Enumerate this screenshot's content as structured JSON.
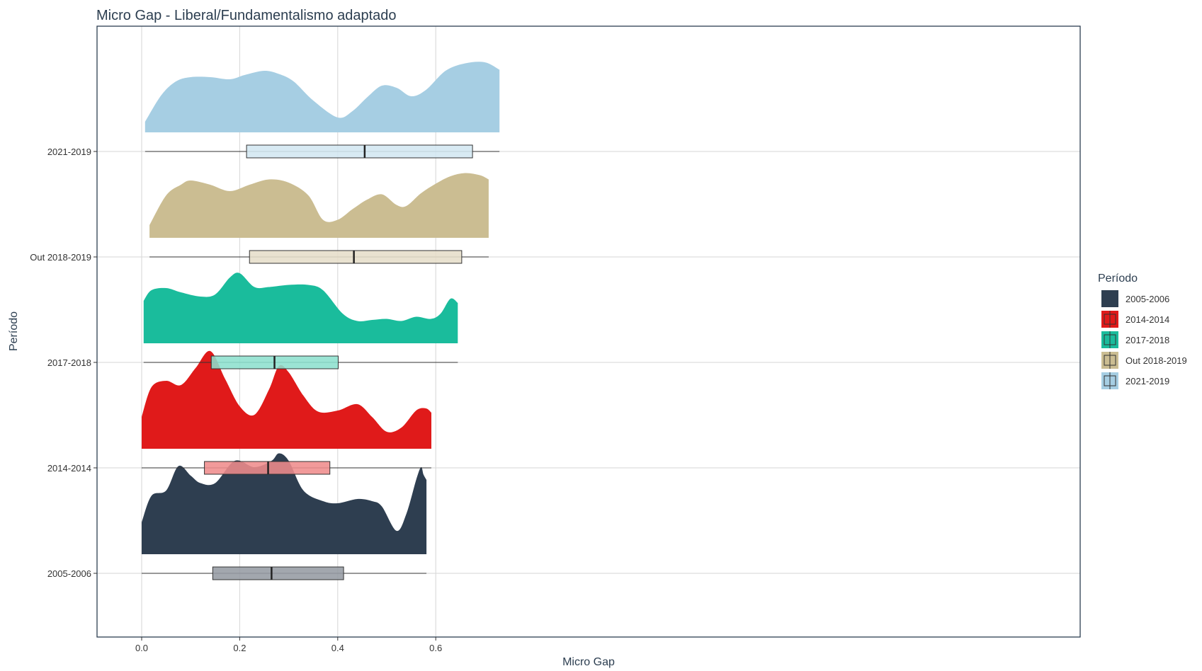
{
  "chart_data": {
    "type": "raincloud",
    "title": "Micro Gap - Liberal/Fundamentalismo adaptado",
    "xlabel": "Micro Gap",
    "ylabel": "Período",
    "xlim": [
      -0.09,
      1.91
    ],
    "x_ticks": [
      0.0,
      0.2,
      0.4,
      0.6
    ],
    "x_tick_labels": [
      "0.0",
      "0.2",
      "0.4",
      "0.6"
    ],
    "grid": true,
    "legend": {
      "title": "Período",
      "position": "right"
    },
    "series": [
      {
        "name": "2005-2006",
        "color": "#2e3e50",
        "box_fill": "#959ba3",
        "density_max": 1.0,
        "box": {
          "min": 0.0,
          "q1": 0.145,
          "median": 0.265,
          "q3": 0.412,
          "max": 0.581
        },
        "density": [
          [
            0.0,
            0.3
          ],
          [
            0.02,
            0.55
          ],
          [
            0.05,
            0.6
          ],
          [
            0.075,
            0.83
          ],
          [
            0.1,
            0.74
          ],
          [
            0.12,
            0.67
          ],
          [
            0.15,
            0.67
          ],
          [
            0.19,
            0.88
          ],
          [
            0.23,
            0.82
          ],
          [
            0.265,
            0.88
          ],
          [
            0.28,
            0.95
          ],
          [
            0.3,
            0.88
          ],
          [
            0.33,
            0.6
          ],
          [
            0.37,
            0.5
          ],
          [
            0.4,
            0.48
          ],
          [
            0.44,
            0.52
          ],
          [
            0.47,
            0.5
          ],
          [
            0.49,
            0.45
          ],
          [
            0.52,
            0.22
          ],
          [
            0.54,
            0.38
          ],
          [
            0.56,
            0.7
          ],
          [
            0.57,
            0.82
          ],
          [
            0.575,
            0.75
          ],
          [
            0.581,
            0.7
          ]
        ]
      },
      {
        "name": "2014-2014",
        "color": "#e01a1a",
        "box_fill": "#ef8c8c",
        "density_max": 1.0,
        "box": {
          "min": 0.0,
          "q1": 0.128,
          "median": 0.258,
          "q3": 0.384,
          "max": 0.591
        },
        "density": [
          [
            0.0,
            0.3
          ],
          [
            0.02,
            0.58
          ],
          [
            0.05,
            0.64
          ],
          [
            0.08,
            0.6
          ],
          [
            0.11,
            0.76
          ],
          [
            0.14,
            0.92
          ],
          [
            0.17,
            0.66
          ],
          [
            0.2,
            0.4
          ],
          [
            0.23,
            0.32
          ],
          [
            0.26,
            0.56
          ],
          [
            0.28,
            0.78
          ],
          [
            0.3,
            0.72
          ],
          [
            0.33,
            0.5
          ],
          [
            0.36,
            0.35
          ],
          [
            0.4,
            0.36
          ],
          [
            0.44,
            0.42
          ],
          [
            0.47,
            0.3
          ],
          [
            0.5,
            0.16
          ],
          [
            0.53,
            0.2
          ],
          [
            0.56,
            0.36
          ],
          [
            0.58,
            0.38
          ],
          [
            0.591,
            0.34
          ]
        ]
      },
      {
        "name": "2017-2018",
        "color": "#1abc9c",
        "box_fill": "#8de0ce",
        "density_max": 0.8,
        "box": {
          "min": 0.004,
          "q1": 0.142,
          "median": 0.271,
          "q3": 0.401,
          "max": 0.645
        },
        "density": [
          [
            0.004,
            0.4
          ],
          [
            0.02,
            0.5
          ],
          [
            0.05,
            0.52
          ],
          [
            0.08,
            0.48
          ],
          [
            0.12,
            0.44
          ],
          [
            0.15,
            0.46
          ],
          [
            0.18,
            0.62
          ],
          [
            0.2,
            0.66
          ],
          [
            0.23,
            0.53
          ],
          [
            0.26,
            0.53
          ],
          [
            0.3,
            0.55
          ],
          [
            0.34,
            0.55
          ],
          [
            0.37,
            0.5
          ],
          [
            0.41,
            0.28
          ],
          [
            0.44,
            0.21
          ],
          [
            0.47,
            0.22
          ],
          [
            0.5,
            0.23
          ],
          [
            0.53,
            0.21
          ],
          [
            0.56,
            0.25
          ],
          [
            0.59,
            0.23
          ],
          [
            0.61,
            0.28
          ],
          [
            0.63,
            0.42
          ],
          [
            0.645,
            0.38
          ]
        ]
      },
      {
        "name": "Out 2018-2019",
        "color": "#cbbd92",
        "box_fill": "#e6dec9",
        "density_max": 0.8,
        "box": {
          "min": 0.016,
          "q1": 0.22,
          "median": 0.433,
          "q3": 0.653,
          "max": 0.708
        },
        "density": [
          [
            0.016,
            0.12
          ],
          [
            0.05,
            0.4
          ],
          [
            0.08,
            0.5
          ],
          [
            0.1,
            0.54
          ],
          [
            0.14,
            0.5
          ],
          [
            0.18,
            0.44
          ],
          [
            0.22,
            0.5
          ],
          [
            0.26,
            0.55
          ],
          [
            0.3,
            0.52
          ],
          [
            0.34,
            0.4
          ],
          [
            0.37,
            0.17
          ],
          [
            0.4,
            0.17
          ],
          [
            0.43,
            0.27
          ],
          [
            0.46,
            0.36
          ],
          [
            0.49,
            0.41
          ],
          [
            0.52,
            0.31
          ],
          [
            0.54,
            0.3
          ],
          [
            0.57,
            0.42
          ],
          [
            0.6,
            0.51
          ],
          [
            0.63,
            0.58
          ],
          [
            0.66,
            0.61
          ],
          [
            0.69,
            0.59
          ],
          [
            0.708,
            0.55
          ]
        ]
      },
      {
        "name": "2021-2019",
        "color": "#a6cee3",
        "box_fill": "#d3e7f1",
        "density_max": 0.8,
        "box": {
          "min": 0.007,
          "q1": 0.214,
          "median": 0.455,
          "q3": 0.675,
          "max": 0.73
        },
        "density": [
          [
            0.007,
            0.1
          ],
          [
            0.04,
            0.35
          ],
          [
            0.07,
            0.48
          ],
          [
            0.1,
            0.52
          ],
          [
            0.14,
            0.52
          ],
          [
            0.18,
            0.5
          ],
          [
            0.21,
            0.54
          ],
          [
            0.25,
            0.58
          ],
          [
            0.28,
            0.55
          ],
          [
            0.31,
            0.48
          ],
          [
            0.35,
            0.3
          ],
          [
            0.4,
            0.14
          ],
          [
            0.43,
            0.2
          ],
          [
            0.46,
            0.33
          ],
          [
            0.49,
            0.44
          ],
          [
            0.52,
            0.42
          ],
          [
            0.55,
            0.34
          ],
          [
            0.58,
            0.4
          ],
          [
            0.62,
            0.58
          ],
          [
            0.66,
            0.65
          ],
          [
            0.7,
            0.66
          ],
          [
            0.73,
            0.59
          ]
        ]
      }
    ]
  }
}
